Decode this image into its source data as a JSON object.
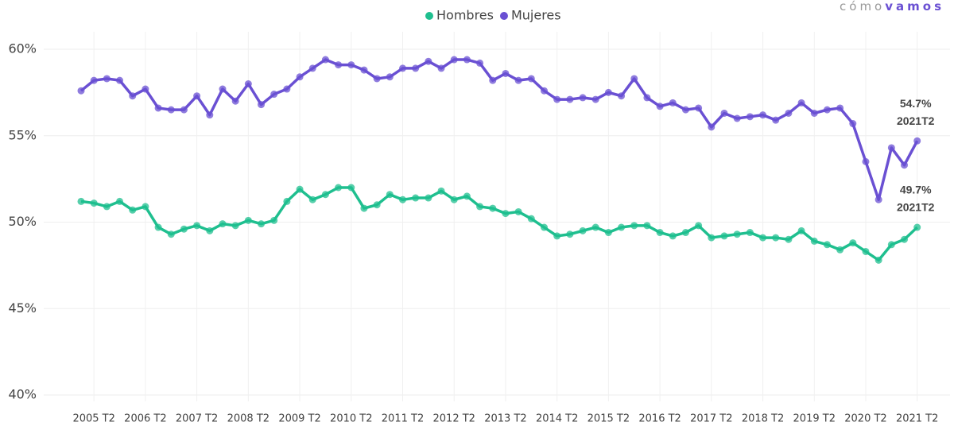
{
  "chart_data": {
    "type": "line",
    "brand": {
      "light": "cómo",
      "bold": "vamos"
    },
    "categories": [
      null,
      "2005 T2",
      null,
      null,
      null,
      "2006 T2",
      null,
      null,
      null,
      "2007 T2",
      null,
      null,
      null,
      "2008 T2",
      null,
      null,
      null,
      "2009 T2",
      null,
      null,
      null,
      "2010 T2",
      null,
      null,
      null,
      "2011 T2",
      null,
      null,
      null,
      "2012 T2",
      null,
      null,
      null,
      "2013 T2",
      null,
      null,
      null,
      "2014 T2",
      null,
      null,
      null,
      "2015 T2",
      null,
      null,
      null,
      "2016 T2",
      null,
      null,
      null,
      "2017 T2",
      null,
      null,
      null,
      "2018 T2",
      null,
      null,
      null,
      "2019 T2",
      null,
      null,
      null,
      "2020 T2",
      null,
      null,
      null,
      "2021 T2"
    ],
    "series": [
      {
        "name": "Hombres",
        "color": "#1fbf8f",
        "values": [
          51.2,
          51.1,
          50.9,
          51.2,
          50.7,
          50.9,
          49.7,
          49.3,
          49.6,
          49.8,
          49.5,
          49.9,
          49.8,
          50.1,
          49.9,
          50.1,
          51.2,
          51.9,
          51.3,
          51.6,
          52.0,
          52.0,
          50.8,
          51.0,
          51.6,
          51.3,
          51.4,
          51.4,
          51.8,
          51.3,
          51.5,
          50.9,
          50.8,
          50.5,
          50.6,
          50.2,
          49.7,
          49.2,
          49.3,
          49.5,
          49.7,
          49.4,
          49.7,
          49.8,
          49.8,
          49.4,
          49.2,
          49.4,
          49.8,
          49.1,
          49.2,
          49.3,
          49.4,
          49.1,
          49.1,
          49.0,
          49.5,
          48.9,
          48.7,
          48.4,
          48.8,
          48.3,
          47.8,
          48.7,
          49.0,
          49.7
        ]
      },
      {
        "name": "Mujeres",
        "color": "#6a50d3",
        "values": [
          57.6,
          58.2,
          58.3,
          58.2,
          57.3,
          57.7,
          56.6,
          56.5,
          56.5,
          57.3,
          56.2,
          57.7,
          57.0,
          58.0,
          56.8,
          57.4,
          57.7,
          58.4,
          58.9,
          59.4,
          59.1,
          59.1,
          58.8,
          58.3,
          58.4,
          58.9,
          58.9,
          59.3,
          58.9,
          59.4,
          59.4,
          59.2,
          58.2,
          58.6,
          58.2,
          58.3,
          57.6,
          57.1,
          57.1,
          57.2,
          57.1,
          57.5,
          57.3,
          58.3,
          57.2,
          56.7,
          56.9,
          56.5,
          56.6,
          55.5,
          56.3,
          56.0,
          56.1,
          56.2,
          55.9,
          56.3,
          56.9,
          56.3,
          56.5,
          56.6,
          55.7,
          53.5,
          51.3,
          54.3,
          53.3,
          54.7
        ]
      }
    ],
    "annotations": [
      [
        "49.7%",
        "2021T2"
      ],
      [
        "54.7%",
        "2021T2"
      ]
    ],
    "ylim": [
      40,
      60
    ],
    "yticks": [
      {
        "value": 40,
        "label": "40%"
      },
      {
        "value": 45,
        "label": "45%"
      },
      {
        "value": 50,
        "label": "50%"
      },
      {
        "value": 55,
        "label": "55%"
      },
      {
        "value": 60,
        "label": "60%"
      }
    ],
    "grid": true,
    "legend": "top"
  }
}
